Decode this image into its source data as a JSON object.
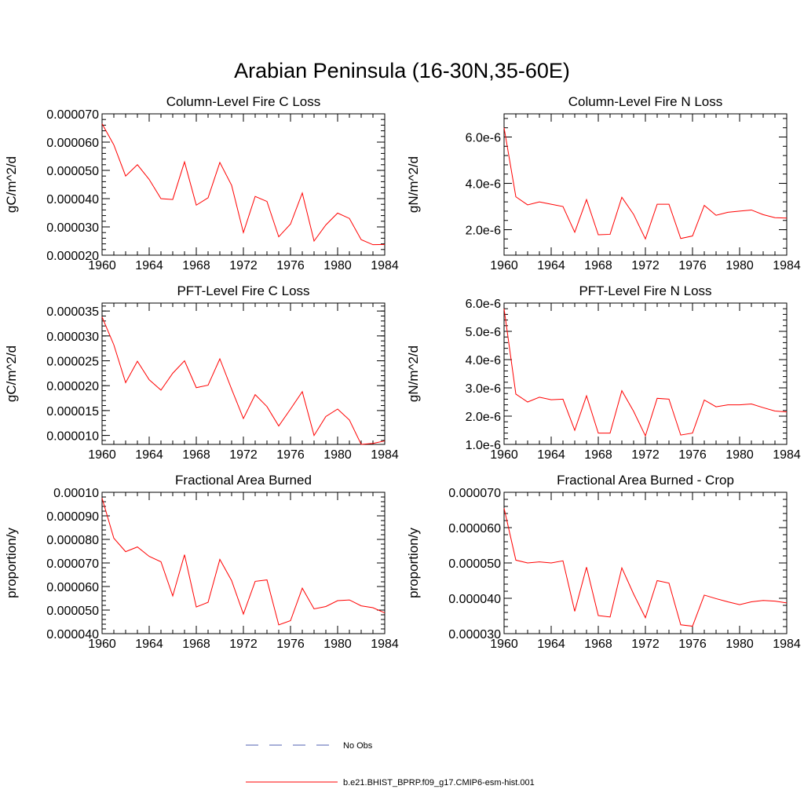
{
  "page_title": "Arabian Peninsula (16-30N,35-60E)",
  "legend": {
    "entries": [
      {
        "label": "No Obs",
        "color": "#4f5fb0",
        "dash": "dashed"
      },
      {
        "label": "b.e21.BHIST_BPRP.f09_g17.CMIP6-esm-hist.001",
        "color": "#ff0000",
        "dash": "solid"
      }
    ]
  },
  "chart_data": [
    {
      "type": "line",
      "title": "Column-Level Fire C Loss",
      "ylabel": "gC/m^2/d",
      "xlim": [
        1960,
        1984
      ],
      "ylim": [
        2e-05,
        7e-05
      ],
      "x_ticks": [
        "1960",
        "1964",
        "1968",
        "1972",
        "1976",
        "1980",
        "1984"
      ],
      "y_ticks": [
        {
          "value": 2e-05,
          "label": "0.000020"
        },
        {
          "value": 3e-05,
          "label": "0.000030"
        },
        {
          "value": 4e-05,
          "label": "0.000040"
        },
        {
          "value": 5e-05,
          "label": "0.000050"
        },
        {
          "value": 6e-05,
          "label": "0.000060"
        },
        {
          "value": 7e-05,
          "label": "0.000070"
        }
      ],
      "series": [
        {
          "color": "#ff0000",
          "x": [
            1960,
            1961,
            1962,
            1963,
            1964,
            1965,
            1966,
            1967,
            1968,
            1969,
            1970,
            1971,
            1972,
            1973,
            1974,
            1975,
            1976,
            1977,
            1978,
            1979,
            1980,
            1981,
            1982,
            1983,
            1984
          ],
          "values": [
            6.65e-05,
            5.9e-05,
            4.8e-05,
            5.2e-05,
            4.68e-05,
            4e-05,
            3.97e-05,
            5.3e-05,
            3.77e-05,
            4.03e-05,
            5.28e-05,
            4.47e-05,
            2.8e-05,
            4.08e-05,
            3.9e-05,
            2.65e-05,
            3.1e-05,
            4.2e-05,
            2.5e-05,
            3.07e-05,
            3.49e-05,
            3.3e-05,
            2.55e-05,
            2.37e-05,
            2.38e-05
          ]
        }
      ]
    },
    {
      "type": "line",
      "title": "Column-Level Fire N Loss",
      "ylabel": "gN/m^2/d",
      "xlim": [
        1960,
        1984
      ],
      "ylim": [
        9e-07,
        7e-06
      ],
      "x_ticks": [
        "1960",
        "1964",
        "1968",
        "1972",
        "1976",
        "1980",
        "1984"
      ],
      "y_ticks": [
        {
          "value": 2e-06,
          "label": "2.0e-6"
        },
        {
          "value": 4e-06,
          "label": "4.0e-6"
        },
        {
          "value": 6e-06,
          "label": "6.0e-6"
        }
      ],
      "series": [
        {
          "color": "#ff0000",
          "x": [
            1960,
            1961,
            1962,
            1963,
            1964,
            1965,
            1966,
            1967,
            1968,
            1969,
            1970,
            1971,
            1972,
            1973,
            1974,
            1975,
            1976,
            1977,
            1978,
            1979,
            1980,
            1981,
            1982,
            1983,
            1984
          ],
          "values": [
            6.4e-06,
            3.42e-06,
            3.07e-06,
            3.2e-06,
            3.1e-06,
            3e-06,
            1.89e-06,
            3.3e-06,
            1.78e-06,
            1.8e-06,
            3.4e-06,
            2.66e-06,
            1.6e-06,
            3.1e-06,
            3.1e-06,
            1.62e-06,
            1.73e-06,
            3.05e-06,
            2.62e-06,
            2.75e-06,
            2.8e-06,
            2.85e-06,
            2.65e-06,
            2.52e-06,
            2.5e-06
          ]
        }
      ]
    },
    {
      "type": "line",
      "title": "PFT-Level Fire C Loss",
      "ylabel": "gC/m^2/d",
      "xlim": [
        1960,
        1984
      ],
      "ylim": [
        8.2e-06,
        3.66e-05
      ],
      "x_ticks": [
        "1960",
        "1964",
        "1968",
        "1972",
        "1976",
        "1980",
        "1984"
      ],
      "y_ticks": [
        {
          "value": 1e-05,
          "label": "0.000010"
        },
        {
          "value": 1.5e-05,
          "label": "0.000015"
        },
        {
          "value": 2e-05,
          "label": "0.000020"
        },
        {
          "value": 2.5e-05,
          "label": "0.000025"
        },
        {
          "value": 3e-05,
          "label": "0.000030"
        },
        {
          "value": 3.5e-05,
          "label": "0.000035"
        }
      ],
      "series": [
        {
          "color": "#ff0000",
          "x": [
            1960,
            1961,
            1962,
            1963,
            1964,
            1965,
            1966,
            1967,
            1968,
            1969,
            1970,
            1971,
            1972,
            1973,
            1974,
            1975,
            1976,
            1977,
            1978,
            1979,
            1980,
            1981,
            1982,
            1983,
            1984
          ],
          "values": [
            3.38e-05,
            2.82e-05,
            2.06e-05,
            2.49e-05,
            2.12e-05,
            1.91e-05,
            2.25e-05,
            2.5e-05,
            1.96e-05,
            2.01e-05,
            2.54e-05,
            1.93e-05,
            1.34e-05,
            1.82e-05,
            1.58e-05,
            1.19e-05,
            1.53e-05,
            1.88e-05,
            1e-05,
            1.38e-05,
            1.53e-05,
            1.31e-05,
            8.2e-06,
            8.4e-06,
            8.9e-06
          ]
        }
      ]
    },
    {
      "type": "line",
      "title": "PFT-Level Fire N Loss",
      "ylabel": "gN/m^2/d",
      "xlim": [
        1960,
        1984
      ],
      "ylim": [
        1e-06,
        6e-06
      ],
      "x_ticks": [
        "1960",
        "1964",
        "1968",
        "1972",
        "1976",
        "1980",
        "1984"
      ],
      "y_ticks": [
        {
          "value": 1e-06,
          "label": "1.0e-6"
        },
        {
          "value": 2e-06,
          "label": "2.0e-6"
        },
        {
          "value": 3e-06,
          "label": "3.0e-6"
        },
        {
          "value": 4e-06,
          "label": "4.0e-6"
        },
        {
          "value": 5e-06,
          "label": "5.0e-6"
        },
        {
          "value": 6e-06,
          "label": "6.0e-6"
        }
      ],
      "series": [
        {
          "color": "#ff0000",
          "x": [
            1960,
            1961,
            1962,
            1963,
            1964,
            1965,
            1966,
            1967,
            1968,
            1969,
            1970,
            1971,
            1972,
            1973,
            1974,
            1975,
            1976,
            1977,
            1978,
            1979,
            1980,
            1981,
            1982,
            1983,
            1984
          ],
          "values": [
            5.8e-06,
            2.78e-06,
            2.5e-06,
            2.67e-06,
            2.58e-06,
            2.6e-06,
            1.5e-06,
            2.72e-06,
            1.4e-06,
            1.4e-06,
            2.9e-06,
            2.17e-06,
            1.3e-06,
            2.63e-06,
            2.6e-06,
            1.33e-06,
            1.4e-06,
            2.57e-06,
            2.33e-06,
            2.4e-06,
            2.4e-06,
            2.43e-06,
            2.3e-06,
            2.18e-06,
            2.15e-06
          ]
        }
      ]
    },
    {
      "type": "line",
      "title": "Fractional Area Burned",
      "ylabel": "proportion/y",
      "xlim": [
        1960,
        1984
      ],
      "ylim": [
        4e-05,
        0.0001
      ],
      "x_ticks": [
        "1960",
        "1964",
        "1968",
        "1972",
        "1976",
        "1980",
        "1984"
      ],
      "y_ticks": [
        {
          "value": 4e-05,
          "label": "0.000040"
        },
        {
          "value": 5e-05,
          "label": "0.000050"
        },
        {
          "value": 6e-05,
          "label": "0.000060"
        },
        {
          "value": 7e-05,
          "label": "0.000070"
        },
        {
          "value": 8e-05,
          "label": "0.000080"
        },
        {
          "value": 9e-05,
          "label": "0.000090"
        },
        {
          "value": 0.0001,
          "label": "0.00010"
        }
      ],
      "series": [
        {
          "color": "#ff0000",
          "x": [
            1960,
            1961,
            1962,
            1963,
            1964,
            1965,
            1966,
            1967,
            1968,
            1969,
            1970,
            1971,
            1972,
            1973,
            1974,
            1975,
            1976,
            1977,
            1978,
            1979,
            1980,
            1981,
            1982,
            1983,
            1984
          ],
          "values": [
            9.75e-05,
            8.05e-05,
            7.48e-05,
            7.68e-05,
            7.28e-05,
            7.05e-05,
            5.6e-05,
            7.35e-05,
            5.13e-05,
            5.33e-05,
            7.15e-05,
            6.25e-05,
            4.83e-05,
            6.22e-05,
            6.28e-05,
            4.37e-05,
            4.55e-05,
            5.93e-05,
            5.05e-05,
            5.15e-05,
            5.4e-05,
            5.43e-05,
            5.18e-05,
            5.1e-05,
            4.88e-05
          ]
        }
      ]
    },
    {
      "type": "line",
      "title": "Fractional Area Burned - Crop",
      "ylabel": "proportion/y",
      "xlim": [
        1960,
        1984
      ],
      "ylim": [
        3e-05,
        7e-05
      ],
      "x_ticks": [
        "1960",
        "1964",
        "1968",
        "1972",
        "1976",
        "1980",
        "1984"
      ],
      "y_ticks": [
        {
          "value": 3e-05,
          "label": "0.000030"
        },
        {
          "value": 4e-05,
          "label": "0.000040"
        },
        {
          "value": 5e-05,
          "label": "0.000050"
        },
        {
          "value": 6e-05,
          "label": "0.000060"
        },
        {
          "value": 7e-05,
          "label": "0.000070"
        }
      ],
      "series": [
        {
          "color": "#ff0000",
          "x": [
            1960,
            1961,
            1962,
            1963,
            1964,
            1965,
            1966,
            1967,
            1968,
            1969,
            1970,
            1971,
            1972,
            1973,
            1974,
            1975,
            1976,
            1977,
            1978,
            1979,
            1980,
            1981,
            1982,
            1983,
            1984
          ],
          "values": [
            6.55e-05,
            5.08e-05,
            5e-05,
            5.03e-05,
            5e-05,
            5.06e-05,
            3.63e-05,
            4.88e-05,
            3.51e-05,
            3.47e-05,
            4.86e-05,
            4.12e-05,
            3.45e-05,
            4.5e-05,
            4.43e-05,
            3.25e-05,
            3.21e-05,
            4.09e-05,
            3.99e-05,
            3.9e-05,
            3.82e-05,
            3.9e-05,
            3.94e-05,
            3.92e-05,
            3.87e-05
          ]
        }
      ]
    }
  ]
}
